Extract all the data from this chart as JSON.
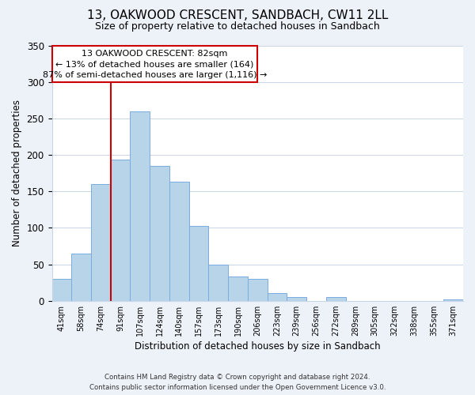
{
  "title": "13, OAKWOOD CRESCENT, SANDBACH, CW11 2LL",
  "subtitle": "Size of property relative to detached houses in Sandbach",
  "xlabel": "Distribution of detached houses by size in Sandbach",
  "ylabel": "Number of detached properties",
  "bar_labels": [
    "41sqm",
    "58sqm",
    "74sqm",
    "91sqm",
    "107sqm",
    "124sqm",
    "140sqm",
    "157sqm",
    "173sqm",
    "190sqm",
    "206sqm",
    "223sqm",
    "239sqm",
    "256sqm",
    "272sqm",
    "289sqm",
    "305sqm",
    "322sqm",
    "338sqm",
    "355sqm",
    "371sqm"
  ],
  "bar_values": [
    30,
    65,
    160,
    193,
    260,
    185,
    163,
    103,
    50,
    33,
    30,
    11,
    5,
    0,
    5,
    0,
    0,
    0,
    0,
    0,
    2
  ],
  "bar_color": "#b8d4e8",
  "bar_edge_color": "#7aace0",
  "vline_color": "#cc0000",
  "vline_x": 2.5,
  "ylim": [
    0,
    350
  ],
  "yticks": [
    0,
    50,
    100,
    150,
    200,
    250,
    300,
    350
  ],
  "annotation_line1": "13 OAKWOOD CRESCENT: 82sqm",
  "annotation_line2": "← 13% of detached houses are smaller (164)",
  "annotation_line3": "87% of semi-detached houses are larger (1,116) →",
  "footer_line1": "Contains HM Land Registry data © Crown copyright and database right 2024.",
  "footer_line2": "Contains public sector information licensed under the Open Government Licence v3.0.",
  "background_color": "#edf2f9",
  "plot_background_color": "#ffffff",
  "grid_color": "#c8d4e8"
}
